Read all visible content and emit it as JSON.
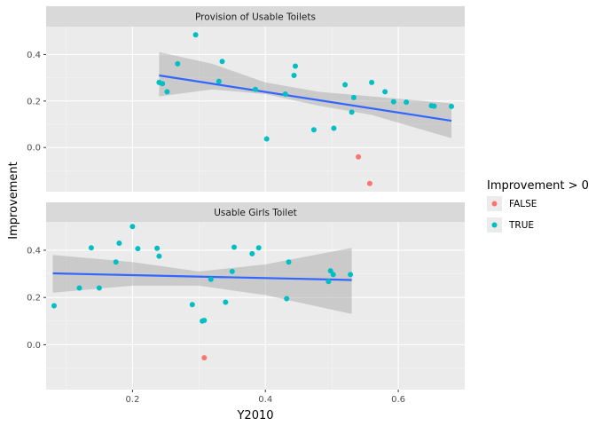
{
  "chart_data": {
    "type": "scatter",
    "xlabel": "Y2010",
    "ylabel": "Improvement",
    "xlim": [
      0.07,
      0.7
    ],
    "ylim": [
      -0.19,
      0.52
    ],
    "x_ticks": [
      0.2,
      0.4,
      0.6
    ],
    "x_tick_labels": [
      "0.2",
      "0.4",
      "0.6"
    ],
    "y_ticks": [
      0.0,
      0.2,
      0.4
    ],
    "y_tick_labels": [
      "0.0",
      "0.2",
      "0.4"
    ],
    "grid": true,
    "colors": {
      "panel_bg": "#ebebeb",
      "strip_bg": "#d9d9d9",
      "grid_major": "#ffffff",
      "false_color": "#F8766D",
      "true_color": "#00BFC4",
      "smooth_line": "#3366FF",
      "ribbon": "#999999"
    },
    "legend": {
      "title": "Improvement > 0",
      "position": "right",
      "entries": [
        {
          "label": "FALSE",
          "color": "#F8766D"
        },
        {
          "label": "TRUE",
          "color": "#00BFC4"
        }
      ]
    },
    "facets": [
      {
        "title": "Provision of Usable Toilets",
        "trend": {
          "x": [
            0.24,
            0.68
          ],
          "y": [
            0.31,
            0.115
          ]
        },
        "band": {
          "x": [
            0.24,
            0.32,
            0.4,
            0.48,
            0.56,
            0.68
          ],
          "lower": [
            0.22,
            0.25,
            0.23,
            0.18,
            0.14,
            0.04
          ],
          "upper": [
            0.41,
            0.36,
            0.28,
            0.24,
            0.22,
            0.19
          ]
        },
        "points": [
          {
            "x": 0.295,
            "y": 0.485,
            "positive": true
          },
          {
            "x": 0.268,
            "y": 0.36,
            "positive": true
          },
          {
            "x": 0.335,
            "y": 0.37,
            "positive": true
          },
          {
            "x": 0.445,
            "y": 0.35,
            "positive": true
          },
          {
            "x": 0.443,
            "y": 0.31,
            "positive": true
          },
          {
            "x": 0.24,
            "y": 0.28,
            "positive": true
          },
          {
            "x": 0.245,
            "y": 0.275,
            "positive": true
          },
          {
            "x": 0.33,
            "y": 0.285,
            "positive": true
          },
          {
            "x": 0.252,
            "y": 0.24,
            "positive": true
          },
          {
            "x": 0.385,
            "y": 0.25,
            "positive": true
          },
          {
            "x": 0.43,
            "y": 0.23,
            "positive": true
          },
          {
            "x": 0.52,
            "y": 0.27,
            "positive": true
          },
          {
            "x": 0.56,
            "y": 0.28,
            "positive": true
          },
          {
            "x": 0.533,
            "y": 0.215,
            "positive": true
          },
          {
            "x": 0.58,
            "y": 0.24,
            "positive": true
          },
          {
            "x": 0.593,
            "y": 0.197,
            "positive": true
          },
          {
            "x": 0.612,
            "y": 0.195,
            "positive": true
          },
          {
            "x": 0.65,
            "y": 0.18,
            "positive": true
          },
          {
            "x": 0.654,
            "y": 0.178,
            "positive": true
          },
          {
            "x": 0.68,
            "y": 0.177,
            "positive": true
          },
          {
            "x": 0.53,
            "y": 0.152,
            "positive": true
          },
          {
            "x": 0.402,
            "y": 0.037,
            "positive": true
          },
          {
            "x": 0.473,
            "y": 0.076,
            "positive": true
          },
          {
            "x": 0.503,
            "y": 0.083,
            "positive": true
          },
          {
            "x": 0.54,
            "y": -0.04,
            "positive": false
          },
          {
            "x": 0.557,
            "y": -0.155,
            "positive": false
          }
        ]
      },
      {
        "title": "Usable Girls Toilet",
        "trend": {
          "x": [
            0.08,
            0.53
          ],
          "y": [
            0.302,
            0.274
          ]
        },
        "band": {
          "x": [
            0.08,
            0.2,
            0.3,
            0.4,
            0.53
          ],
          "lower": [
            0.22,
            0.25,
            0.25,
            0.21,
            0.13
          ],
          "upper": [
            0.38,
            0.35,
            0.31,
            0.34,
            0.41
          ]
        },
        "points": [
          {
            "x": 0.2,
            "y": 0.5,
            "positive": true
          },
          {
            "x": 0.18,
            "y": 0.43,
            "positive": true
          },
          {
            "x": 0.138,
            "y": 0.41,
            "positive": true
          },
          {
            "x": 0.208,
            "y": 0.407,
            "positive": true
          },
          {
            "x": 0.237,
            "y": 0.408,
            "positive": true
          },
          {
            "x": 0.24,
            "y": 0.375,
            "positive": true
          },
          {
            "x": 0.175,
            "y": 0.35,
            "positive": true
          },
          {
            "x": 0.353,
            "y": 0.413,
            "positive": true
          },
          {
            "x": 0.39,
            "y": 0.41,
            "positive": true
          },
          {
            "x": 0.38,
            "y": 0.385,
            "positive": true
          },
          {
            "x": 0.435,
            "y": 0.35,
            "positive": true
          },
          {
            "x": 0.35,
            "y": 0.31,
            "positive": true
          },
          {
            "x": 0.498,
            "y": 0.313,
            "positive": true
          },
          {
            "x": 0.502,
            "y": 0.297,
            "positive": true
          },
          {
            "x": 0.528,
            "y": 0.297,
            "positive": true
          },
          {
            "x": 0.495,
            "y": 0.267,
            "positive": true
          },
          {
            "x": 0.318,
            "y": 0.277,
            "positive": true
          },
          {
            "x": 0.12,
            "y": 0.24,
            "positive": true
          },
          {
            "x": 0.15,
            "y": 0.24,
            "positive": true
          },
          {
            "x": 0.082,
            "y": 0.165,
            "positive": true
          },
          {
            "x": 0.29,
            "y": 0.17,
            "positive": true
          },
          {
            "x": 0.34,
            "y": 0.18,
            "positive": true
          },
          {
            "x": 0.432,
            "y": 0.195,
            "positive": true
          },
          {
            "x": 0.305,
            "y": 0.1,
            "positive": true
          },
          {
            "x": 0.308,
            "y": 0.103,
            "positive": true
          },
          {
            "x": 0.308,
            "y": -0.055,
            "positive": false
          }
        ]
      }
    ]
  }
}
